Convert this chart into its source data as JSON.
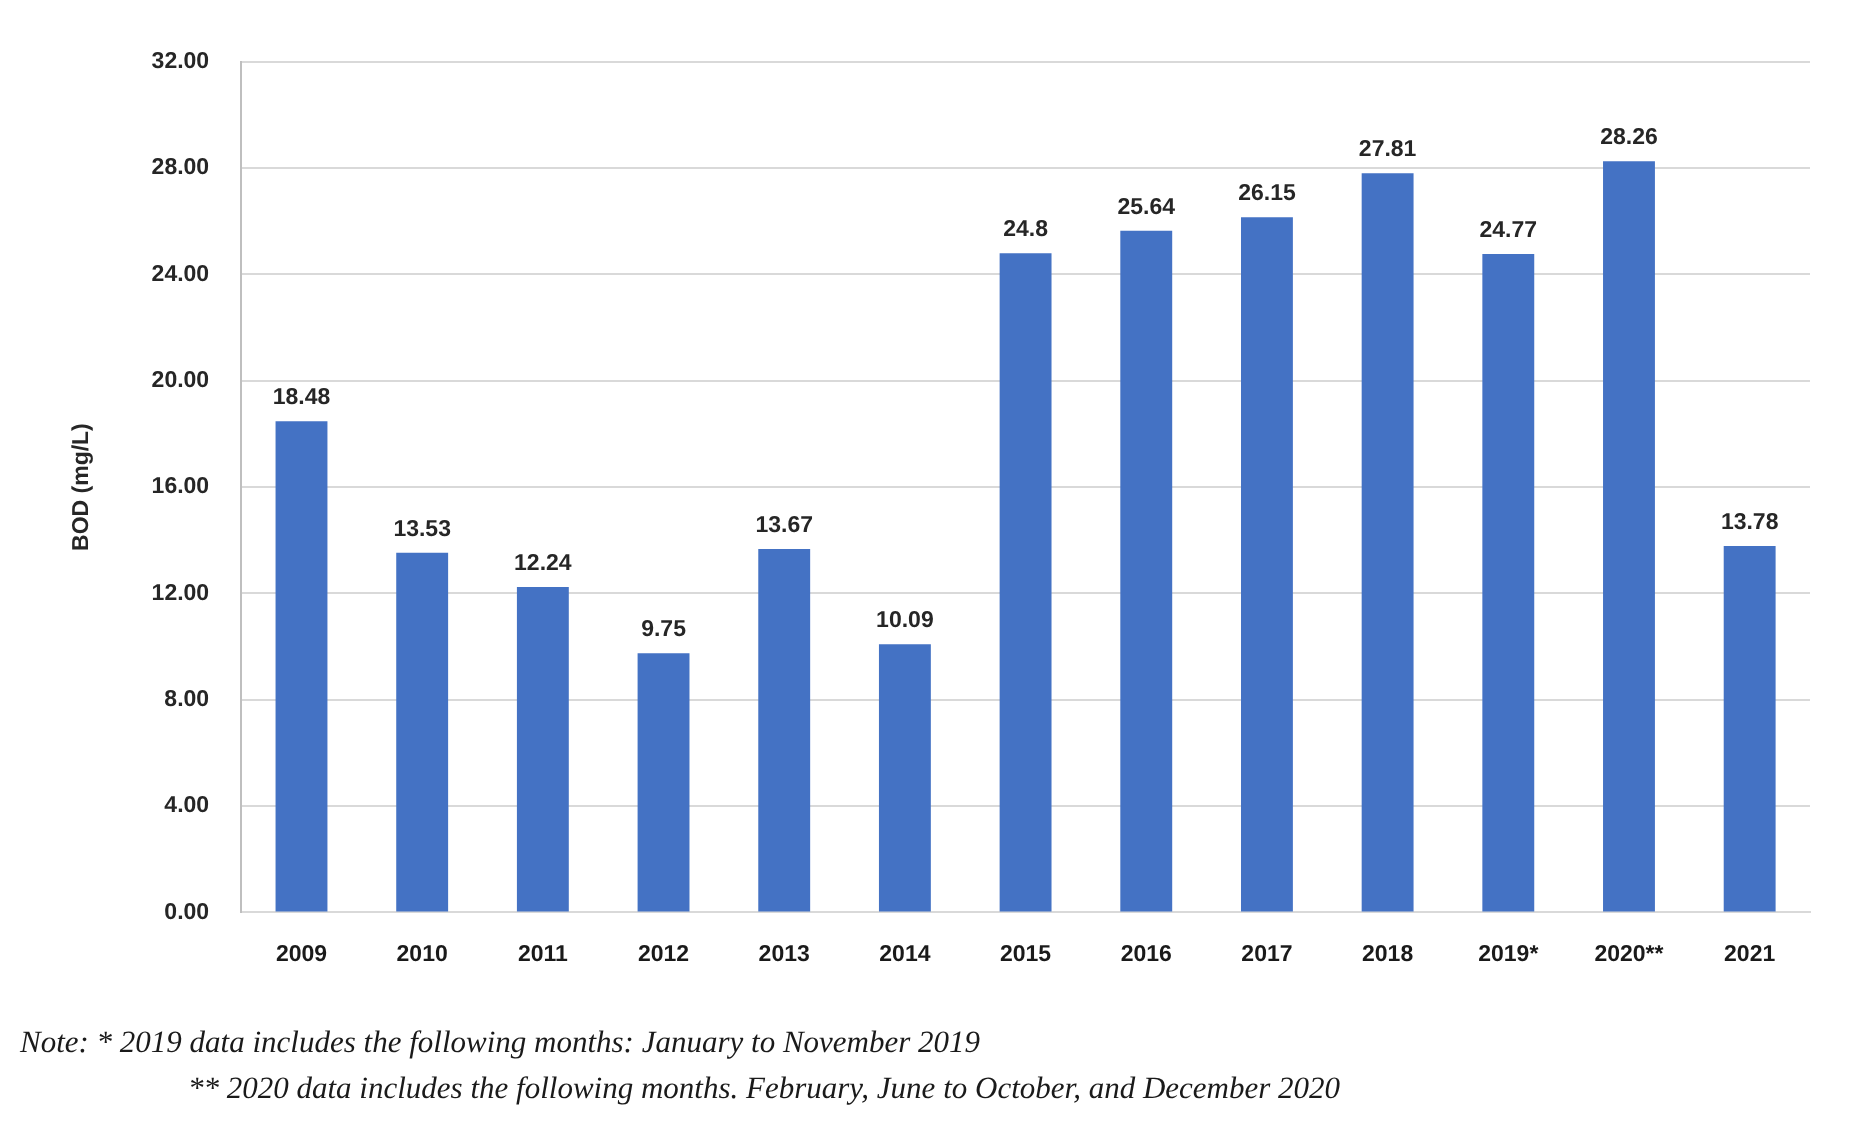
{
  "chart_data": {
    "type": "bar",
    "ylabel": "BOD (mg/L)",
    "categories": [
      "2009",
      "2010",
      "2011",
      "2012",
      "2013",
      "2014",
      "2015",
      "2016",
      "2017",
      "2018",
      "2019*",
      "2020**",
      "2021"
    ],
    "values": [
      18.48,
      13.53,
      12.24,
      9.75,
      13.67,
      10.09,
      24.8,
      25.64,
      26.15,
      27.81,
      24.77,
      28.26,
      13.78
    ],
    "color": "#4472c4",
    "ylim": [
      0,
      32
    ],
    "yticks": [
      {
        "value": 0,
        "label": "0.00"
      },
      {
        "value": 4,
        "label": "4.00"
      },
      {
        "value": 8,
        "label": "8.00"
      },
      {
        "value": 12,
        "label": "12.00"
      },
      {
        "value": 16,
        "label": "16.00"
      },
      {
        "value": 20,
        "label": "20.00"
      },
      {
        "value": 24,
        "label": "24.00"
      },
      {
        "value": 28,
        "label": "28.00"
      },
      {
        "value": 32,
        "label": "32.00"
      }
    ],
    "grid": "y",
    "data_labels": true,
    "annotations": [
      "Note: * 2019 data includes the following months: January to November 2019",
      "** 2020 data includes the following months. February, June to October, and December 2020"
    ]
  }
}
